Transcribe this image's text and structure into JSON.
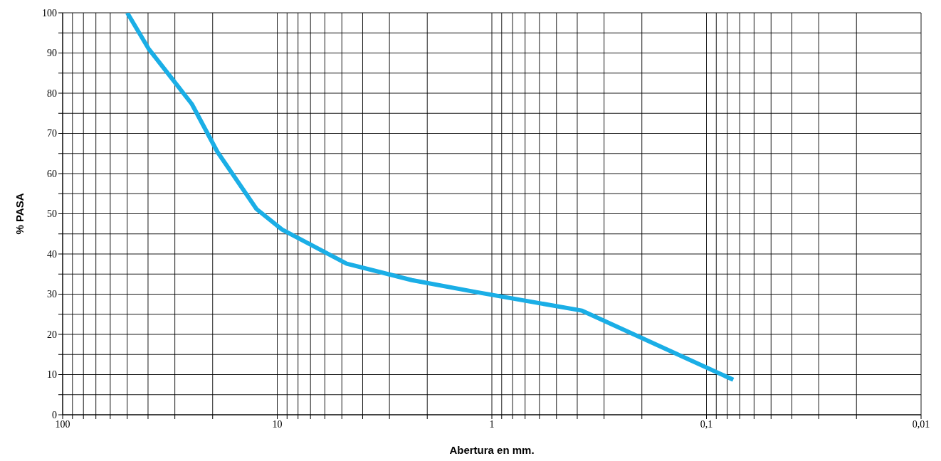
{
  "chart_data": {
    "type": "line",
    "xlabel": "Abertura en mm.",
    "ylabel": "% PASA",
    "log": "x",
    "x": [
      50,
      39.8,
      25,
      19,
      12.5,
      9.5,
      4.75,
      2.36,
      1.18,
      0.38,
      0.075
    ],
    "series": [
      {
        "color": "#1aaee6",
        "values": [
          100,
          91.1,
          77.3,
          65.4,
          51.2,
          46.1,
          37.6,
          33.5,
          30.5,
          25.9,
          8.7
        ]
      }
    ],
    "xlim": [
      100,
      0.01
    ],
    "xticks": [
      100,
      {
        "value": 90,
        "label": null
      },
      {
        "value": 80,
        "label": null
      },
      {
        "value": 70,
        "label": null
      },
      {
        "value": 60,
        "label": null
      },
      {
        "value": 50,
        "label": null
      },
      {
        "value": 40,
        "label": null
      },
      {
        "value": 30,
        "label": null
      },
      {
        "value": 20,
        "label": null
      },
      10,
      {
        "value": 9,
        "label": null
      },
      {
        "value": 8,
        "label": null
      },
      {
        "value": 7,
        "label": null
      },
      {
        "value": 6,
        "label": null
      },
      {
        "value": 5,
        "label": null
      },
      {
        "value": 4,
        "label": null
      },
      {
        "value": 3,
        "label": null
      },
      {
        "value": 2,
        "label": null
      },
      1,
      {
        "value": 0.9,
        "label": null
      },
      {
        "value": 0.8,
        "label": null
      },
      {
        "value": 0.7,
        "label": null
      },
      {
        "value": 0.6,
        "label": null
      },
      {
        "value": 0.5,
        "label": null
      },
      {
        "value": 0.4,
        "label": null
      },
      {
        "value": 0.3,
        "label": null
      },
      {
        "value": 0.2,
        "label": null
      },
      {
        "value": 0.1,
        "label": "0,1"
      },
      {
        "value": 0.09,
        "label": null
      },
      {
        "value": 0.08,
        "label": null
      },
      {
        "value": 0.07,
        "label": null
      },
      {
        "value": 0.06,
        "label": null
      },
      {
        "value": 0.05,
        "label": null
      },
      {
        "value": 0.04,
        "label": null
      },
      {
        "value": 0.03,
        "label": null
      },
      {
        "value": 0.02,
        "label": null
      },
      {
        "value": 0.01,
        "label": "0,01"
      }
    ],
    "ylim": [
      0,
      100
    ],
    "yticks": [
      0,
      {
        "value": 5,
        "label": null
      },
      10,
      {
        "value": 15,
        "label": null
      },
      20,
      {
        "value": 25,
        "label": null
      },
      30,
      {
        "value": 35,
        "label": null
      },
      40,
      {
        "value": 45,
        "label": null
      },
      50,
      {
        "value": 55,
        "label": null
      },
      60,
      {
        "value": 65,
        "label": null
      },
      70,
      {
        "value": 75,
        "label": null
      },
      80,
      {
        "value": 85,
        "label": null
      },
      90,
      {
        "value": 95,
        "label": null
      },
      100
    ],
    "grid": true,
    "marker": "none",
    "line_style": "solid"
  }
}
